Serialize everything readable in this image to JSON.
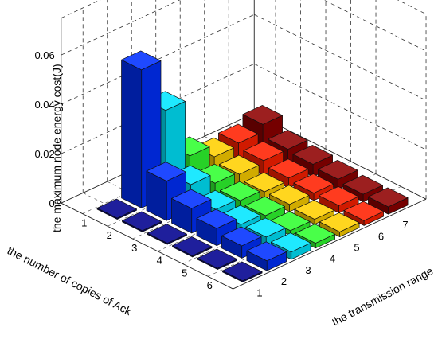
{
  "chart_data": {
    "type": "bar3d",
    "title": "",
    "zlabel": "the maximum node energy cost(J)",
    "ylabel": "the number of copies of Ack",
    "xlabel": "the transmission range",
    "zlim": [
      0,
      0.06
    ],
    "z_ticks": [
      "0",
      "0.02",
      "0.04",
      "0.06"
    ],
    "copies": [
      1,
      2,
      3,
      4,
      5,
      6
    ],
    "range": [
      1,
      2,
      3,
      4,
      5,
      6,
      7
    ],
    "grid": true,
    "colors": [
      "#00008f",
      "#0030ff",
      "#00e6ff",
      "#30ff30",
      "#ffd000",
      "#ff2000",
      "#8f0000"
    ],
    "values": [
      [
        0.0005,
        0.056,
        0.035,
        0.012,
        0.007,
        0.008,
        0.011
      ],
      [
        0.0005,
        0.016,
        0.01,
        0.006,
        0.005,
        0.006,
        0.006
      ],
      [
        0.0005,
        0.01,
        0.005,
        0.004,
        0.003,
        0.004,
        0.005
      ],
      [
        0.0005,
        0.007,
        0.004,
        0.003,
        0.003,
        0.003,
        0.004
      ],
      [
        0.0005,
        0.005,
        0.004,
        0.002,
        0.002,
        0.003,
        0.003
      ],
      [
        0.0005,
        0.004,
        0.003,
        0.002,
        0.002,
        0.002,
        0.003
      ]
    ]
  }
}
